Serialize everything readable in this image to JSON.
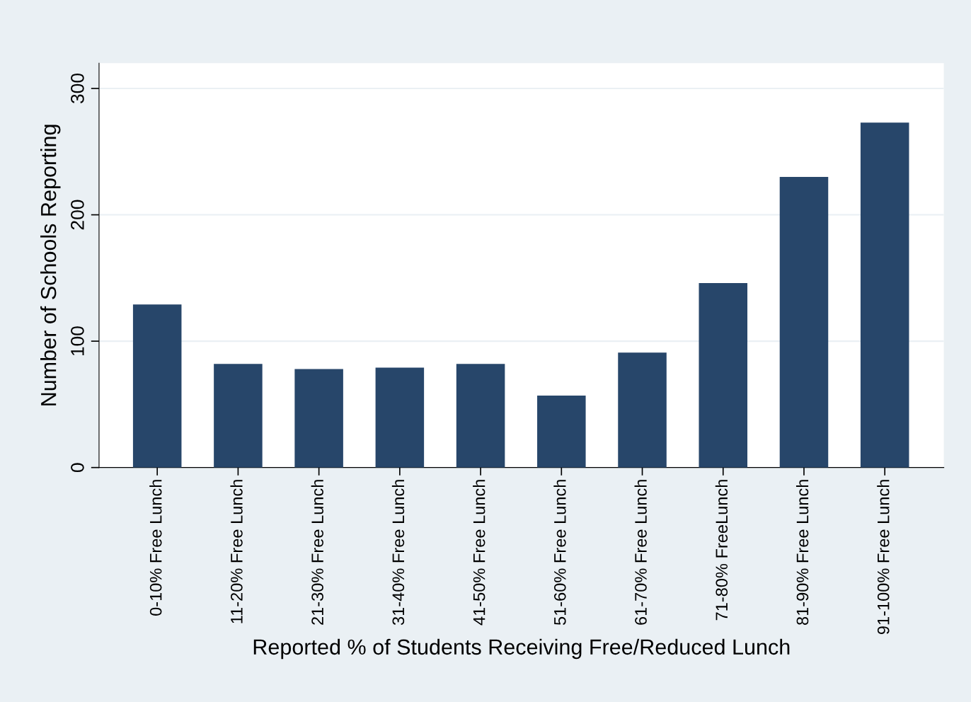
{
  "chart_data": {
    "type": "bar",
    "xlabel": "Reported % of Students Receiving Free/Reduced Lunch",
    "ylabel": "Number of Schools Reporting",
    "categories": [
      "0-10% Free Lunch",
      "11-20% Free Lunch",
      "21-30% Free Lunch",
      "31-40% Free Lunch",
      "41-50% Free Lunch",
      "51-60% Free Lunch",
      "61-70% Free Lunch",
      "71-80% FreeLunch",
      "81-90% Free Lunch",
      "91-100% Free Lunch"
    ],
    "values": [
      129,
      82,
      78,
      79,
      82,
      57,
      91,
      146,
      230,
      273
    ],
    "color": "#27466a",
    "ylim": [
      0,
      320
    ],
    "yticks": [
      0,
      100,
      200,
      300
    ],
    "grid": "y"
  }
}
